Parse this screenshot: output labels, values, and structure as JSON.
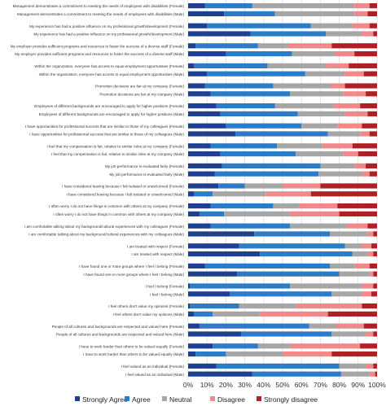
{
  "chart_data": {
    "type": "bar",
    "orientation": "horizontal",
    "stacked": true,
    "xlim": [
      0,
      100
    ],
    "x_ticks": [
      "0%",
      "10%",
      "20%",
      "30%",
      "40%",
      "50%",
      "60%",
      "70%",
      "80%",
      "90%",
      "100%"
    ],
    "grid": true,
    "legend_position": "bottom",
    "series": [
      {
        "name": "Strongly Agree",
        "color": "#1f3f8f"
      },
      {
        "name": "Agree",
        "color": "#2b7bc7"
      },
      {
        "name": "Neutral",
        "color": "#a6a6a6"
      },
      {
        "name": "Disagree",
        "color": "#f08a8a"
      },
      {
        "name": "Strongly disagree",
        "color": "#b01f24"
      }
    ],
    "rows": [
      {
        "label": "Management demonstrates a commitment to meeting the needs of employees with disabilities (Female)",
        "values": [
          9,
          25,
          54,
          8,
          4
        ]
      },
      {
        "label": "Management demonstrates a commitment to meeting the needs of employees with disabilities (Male)",
        "values": [
          19,
          27,
          42,
          7,
          5
        ]
      },
      {
        "label": "My experience has had a positive influence on my professional growth/development (Female)",
        "values": [
          10,
          55,
          22,
          9,
          4
        ]
      },
      {
        "label": "My experience has had a positive influence on my professional growth/development (Male)",
        "values": [
          33,
          40,
          19,
          6,
          2
        ]
      },
      {
        "label": "My employer provides sufficient programs and resources to foster the success of a diverse staff (Female)",
        "values": [
          4,
          33,
          16,
          23,
          24
        ]
      },
      {
        "label": "My employer provides sufficient programs and resources to foster the success of a diverse staff (Male)",
        "values": [
          20,
          35,
          23,
          10,
          12
        ]
      },
      {
        "label": "Within the organization, everyone has access to equal employment opportunities (Female)",
        "values": [
          3,
          39,
          31,
          12,
          15
        ]
      },
      {
        "label": "Within the organization, everyone has access to equal employment opportunities (Male)",
        "values": [
          10,
          52,
          21,
          10,
          7
        ]
      },
      {
        "label": "Promotion decisions are fair at my company (Female)",
        "values": [
          9,
          36,
          30,
          8,
          17
        ]
      },
      {
        "label": "Promotion decisions are fair at my company (Male)",
        "values": [
          12,
          42,
          28,
          12,
          6
        ]
      },
      {
        "label": "Employees of different backgrounds are encouraged to apply for higher positions (Female)",
        "values": [
          15,
          31,
          31,
          14,
          9
        ]
      },
      {
        "label": "Employees of different backgrounds are encouraged to apply for higher positions (Male)",
        "values": [
          17,
          41,
          25,
          12,
          5
        ]
      },
      {
        "label": "I have opportunities for professional success that are similar to those of my colleagues (Female)",
        "values": [
          20,
          40,
          19,
          13,
          8
        ]
      },
      {
        "label": "I have opportunities for professional success that are similar to those of my colleagues (Male)",
        "values": [
          25,
          49,
          17,
          5,
          4
        ]
      },
      {
        "label": "I feel that my compensation is fair, relative to similar roles at my company (Female)",
        "values": [
          12,
          35,
          24,
          16,
          13
        ]
      },
      {
        "label": "I feel that my compensation is fair, relative to similar roles at my company (Male)",
        "values": [
          17,
          40,
          25,
          8,
          10
        ]
      },
      {
        "label": "My job performance is evaluated fairly (Female)",
        "values": [
          18,
          52,
          18,
          6,
          6
        ]
      },
      {
        "label": "My job performance is evaluated fairly (Male)",
        "values": [
          14,
          55,
          23,
          4,
          4
        ]
      },
      {
        "label": "I have considered leaving because I felt isolated or unwelcomed (Female)",
        "values": [
          16,
          14,
          20,
          20,
          30
        ]
      },
      {
        "label": "I have considered leaving because I felt isolated or unwelcomed (Male)",
        "values": [
          3,
          10,
          28,
          24,
          35
        ]
      },
      {
        "label": "I often worry I do not have things in common with others at my company (Female)",
        "values": [
          12,
          33,
          14,
          20,
          21
        ]
      },
      {
        "label": "I often worry I do not have things in common with others at my company (Male)",
        "values": [
          6,
          13,
          35,
          26,
          20
        ]
      },
      {
        "label": "I am comfortable talking about my background/cultural experiences with my colleagues (Female)",
        "values": [
          12,
          42,
          30,
          11,
          5
        ]
      },
      {
        "label": "I am comfortable talking about my background/cultural experiences with my colleagues (Male)",
        "values": [
          35,
          40,
          20,
          3,
          2
        ]
      },
      {
        "label": "I am treated with respect (Female)",
        "values": [
          27,
          56,
          9,
          5,
          3
        ]
      },
      {
        "label": "I am treated with respect (Male)",
        "values": [
          38,
          49,
          8,
          3,
          2
        ]
      },
      {
        "label": "I have found one or more groups where I feel I belong (Female)",
        "values": [
          9,
          66,
          13,
          8,
          4
        ]
      },
      {
        "label": "I have found one or more groups where I feel I belong (Male)",
        "values": [
          26,
          54,
          16,
          2,
          2
        ]
      },
      {
        "label": "I feel I belong (Female)",
        "values": [
          1,
          53,
          38,
          6,
          2
        ]
      },
      {
        "label": "I feel I belong (Male)",
        "values": [
          22,
          54,
          16,
          5,
          3
        ]
      },
      {
        "label": "I feel others don't value my opinions (Female)",
        "values": [
          1,
          26,
          30,
          35,
          8
        ]
      },
      {
        "label": "I feel others don't value my opinions (Male)",
        "values": [
          3,
          10,
          25,
          36,
          26
        ]
      },
      {
        "label": "People of all cultures and backgrounds are respected and valued here (Female)",
        "values": [
          6,
          58,
          14,
          15,
          7
        ]
      },
      {
        "label": "People of all cultures and backgrounds are respected and valued here (Male)",
        "values": [
          28,
          48,
          18,
          4,
          2
        ]
      },
      {
        "label": "I have to work harder than others to be valued equally (Female)",
        "values": [
          13,
          24,
          17,
          37,
          9
        ]
      },
      {
        "label": "I have to work harder than others to be valued equally (Male)",
        "values": [
          4,
          16,
          30,
          26,
          24
        ]
      },
      {
        "label": "I feel valued as an individual (Female)",
        "values": [
          15,
          65,
          14,
          4,
          2
        ]
      },
      {
        "label": "I feel valued as an individual (Male)",
        "values": [
          34,
          47,
          15,
          3,
          1
        ]
      }
    ]
  }
}
